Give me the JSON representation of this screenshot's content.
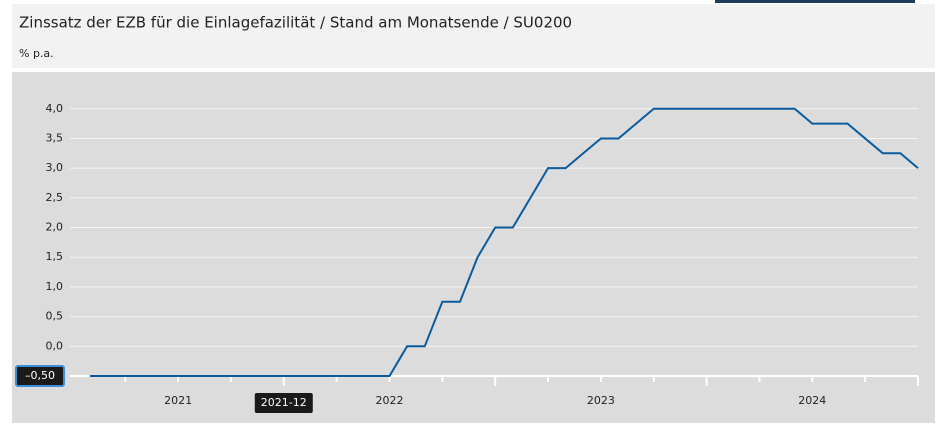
{
  "chart_data": {
    "type": "line",
    "title": "Zinssatz der EZB für die Einlagefazilität / Stand am Monatsende / SU0200",
    "y_label": "% p.a.",
    "categories": [
      "2021-01",
      "2021-02",
      "2021-03",
      "2021-04",
      "2021-05",
      "2021-06",
      "2021-07",
      "2021-08",
      "2021-09",
      "2021-10",
      "2021-11",
      "2021-12",
      "2022-01",
      "2022-02",
      "2022-03",
      "2022-04",
      "2022-05",
      "2022-06",
      "2022-07",
      "2022-08",
      "2022-09",
      "2022-10",
      "2022-11",
      "2022-12",
      "2023-01",
      "2023-02",
      "2023-03",
      "2023-04",
      "2023-05",
      "2023-06",
      "2023-07",
      "2023-08",
      "2023-09",
      "2023-10",
      "2023-11",
      "2023-12",
      "2024-01",
      "2024-02",
      "2024-03",
      "2024-04",
      "2024-05",
      "2024-06",
      "2024-07",
      "2024-08",
      "2024-09",
      "2024-10",
      "2024-11",
      "2024-12"
    ],
    "series": [
      {
        "name": "Zinssatz",
        "color": "#0b5c9e",
        "values": [
          -0.5,
          -0.5,
          -0.5,
          -0.5,
          -0.5,
          -0.5,
          -0.5,
          -0.5,
          -0.5,
          -0.5,
          -0.5,
          -0.5,
          -0.5,
          -0.5,
          -0.5,
          -0.5,
          -0.5,
          -0.5,
          0,
          0,
          0.75,
          0.75,
          1.5,
          2.0,
          2.0,
          2.5,
          3.0,
          3.0,
          3.25,
          3.5,
          3.5,
          3.75,
          4.0,
          4.0,
          4.0,
          4.0,
          4.0,
          4.0,
          4.0,
          4.0,
          4.0,
          3.75,
          3.75,
          3.75,
          3.5,
          3.25,
          3.25,
          3.0
        ]
      }
    ],
    "xticks": [
      {
        "value": "2021-06",
        "label": "2021"
      },
      {
        "value": "2022-06",
        "label": "2022"
      },
      {
        "value": "2023-06",
        "label": "2023"
      },
      {
        "value": "2024-06",
        "label": "2024"
      }
    ],
    "ylim": [
      -0.5,
      4.4
    ],
    "yticks": [
      {
        "value": 0,
        "label": "0,0"
      },
      {
        "value": 0.5,
        "label": "0,5"
      },
      {
        "value": 1,
        "label": "1,0"
      },
      {
        "value": 1.5,
        "label": "1,5"
      },
      {
        "value": 2,
        "label": "2,0"
      },
      {
        "value": 2.5,
        "label": "2,5"
      },
      {
        "value": 3,
        "label": "3,0"
      },
      {
        "value": 3.5,
        "label": "3,5"
      },
      {
        "value": 4,
        "label": "4,0"
      }
    ],
    "grid": true,
    "tooltip": {
      "x": "2021-12",
      "y_label": "–0,50"
    }
  }
}
